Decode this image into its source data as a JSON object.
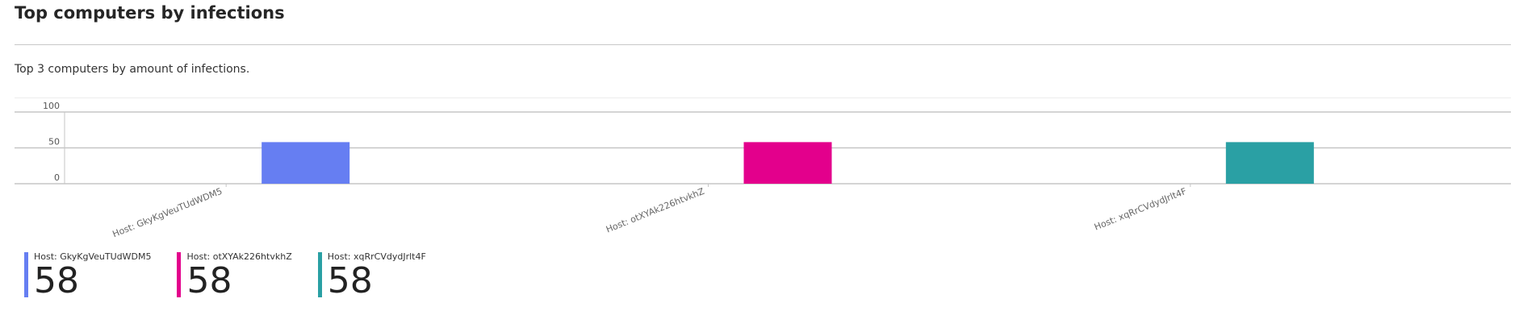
{
  "header": {
    "title": "Top computers by infections",
    "description": "Top 3 computers by amount of infections."
  },
  "chart_data": {
    "type": "bar",
    "title": "",
    "xlabel": "",
    "ylabel": "",
    "ylim": [
      0,
      100
    ],
    "yticks": [
      "0",
      "50",
      "100"
    ],
    "grid": true,
    "categories": [
      "Host: GkyKgVeuTUdWDM5",
      "Host: otXYAk226htvkhZ",
      "Host: xqRrCVdydJrlt4F"
    ],
    "values": [
      58,
      58,
      58
    ],
    "colors": [
      "#667ef2",
      "#e3008c",
      "#2aa0a4"
    ]
  },
  "legend": {
    "items": [
      {
        "label": "Host: GkyKgVeuTUdWDM5",
        "value": "58",
        "color": "#667ef2"
      },
      {
        "label": "Host: otXYAk226htvkhZ",
        "value": "58",
        "color": "#e3008c"
      },
      {
        "label": "Host: xqRrCVdydJrlt4F",
        "value": "58",
        "color": "#2aa0a4"
      }
    ]
  }
}
